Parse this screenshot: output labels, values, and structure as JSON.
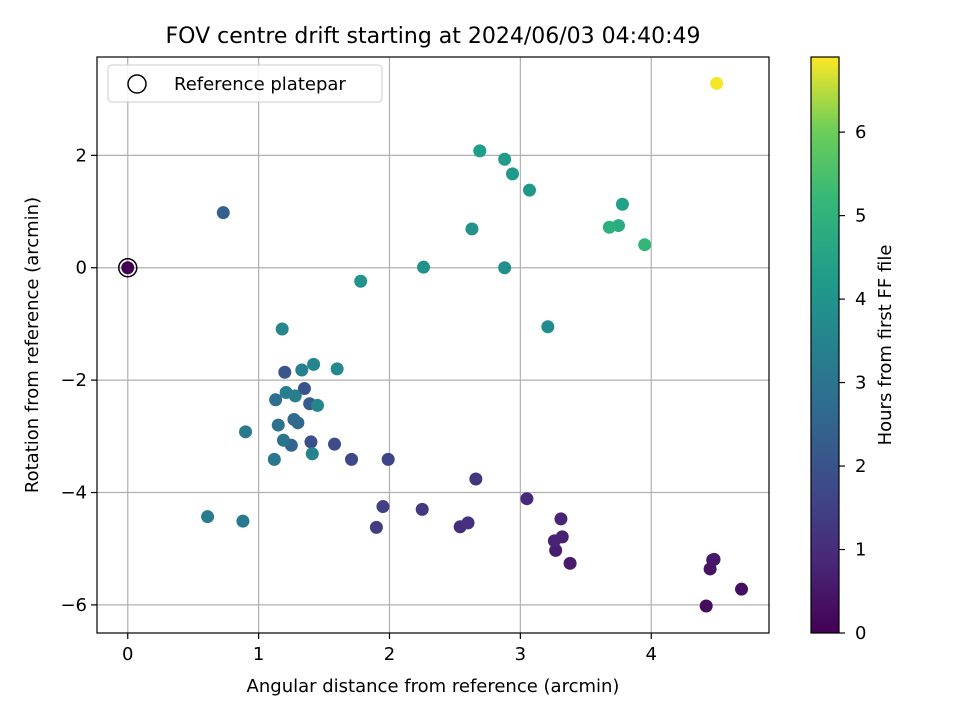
{
  "chart_data": {
    "type": "scatter",
    "title": "FOV centre drift starting at 2024/06/03 04:40:49",
    "xlabel": "Angular distance from reference (arcmin)",
    "ylabel": "Rotation from reference (arcmin)",
    "xlim": [
      -0.235,
      4.9
    ],
    "ylim": [
      -6.5,
      3.75
    ],
    "xticks": [
      0,
      1,
      2,
      3,
      4
    ],
    "yticks": [
      -6,
      -4,
      -2,
      0,
      2
    ],
    "grid": true,
    "legend": {
      "placement": "top-left",
      "entries": [
        "Reference platepar"
      ]
    },
    "reference_point": {
      "x": 0,
      "y": 0
    },
    "colorbar": {
      "label": "Hours from first FF file",
      "range": [
        0,
        6.9
      ],
      "ticks": [
        0,
        1,
        2,
        3,
        4,
        5,
        6
      ],
      "colormap": "viridis"
    },
    "points": [
      {
        "x": 0.0,
        "y": 0.0,
        "c": 0.0
      },
      {
        "x": 4.42,
        "y": -6.02,
        "c": 0.25
      },
      {
        "x": 4.69,
        "y": -5.72,
        "c": 0.3
      },
      {
        "x": 4.45,
        "y": -5.36,
        "c": 0.4
      },
      {
        "x": 4.47,
        "y": -5.2,
        "c": 0.45
      },
      {
        "x": 4.48,
        "y": -5.19,
        "c": 0.5
      },
      {
        "x": 3.38,
        "y": -5.26,
        "c": 0.6
      },
      {
        "x": 3.27,
        "y": -5.03,
        "c": 0.65
      },
      {
        "x": 3.32,
        "y": -4.79,
        "c": 0.7
      },
      {
        "x": 3.26,
        "y": -4.86,
        "c": 0.75
      },
      {
        "x": 3.31,
        "y": -4.47,
        "c": 0.8
      },
      {
        "x": 3.05,
        "y": -4.11,
        "c": 0.9
      },
      {
        "x": 2.54,
        "y": -4.61,
        "c": 1.0
      },
      {
        "x": 2.6,
        "y": -4.54,
        "c": 1.1
      },
      {
        "x": 2.66,
        "y": -3.76,
        "c": 1.2
      },
      {
        "x": 2.25,
        "y": -4.3,
        "c": 1.3
      },
      {
        "x": 1.9,
        "y": -4.62,
        "c": 1.4
      },
      {
        "x": 1.95,
        "y": -4.25,
        "c": 1.5
      },
      {
        "x": 1.99,
        "y": -3.41,
        "c": 1.6
      },
      {
        "x": 1.71,
        "y": -3.41,
        "c": 1.7
      },
      {
        "x": 1.58,
        "y": -3.14,
        "c": 1.8
      },
      {
        "x": 1.4,
        "y": -3.1,
        "c": 1.9
      },
      {
        "x": 1.35,
        "y": -2.15,
        "c": 2.0
      },
      {
        "x": 1.2,
        "y": -1.86,
        "c": 2.1
      },
      {
        "x": 1.39,
        "y": -2.42,
        "c": 2.2
      },
      {
        "x": 0.73,
        "y": 0.98,
        "c": 2.35
      },
      {
        "x": 1.25,
        "y": -3.16,
        "c": 2.5
      },
      {
        "x": 1.3,
        "y": -2.76,
        "c": 2.6
      },
      {
        "x": 1.27,
        "y": -2.7,
        "c": 2.7
      },
      {
        "x": 1.13,
        "y": -2.35,
        "c": 2.8
      },
      {
        "x": 1.15,
        "y": -2.8,
        "c": 2.9
      },
      {
        "x": 1.19,
        "y": -3.07,
        "c": 3.0
      },
      {
        "x": 1.12,
        "y": -3.41,
        "c": 3.1
      },
      {
        "x": 0.9,
        "y": -2.92,
        "c": 3.15
      },
      {
        "x": 0.88,
        "y": -4.51,
        "c": 3.2
      },
      {
        "x": 0.61,
        "y": -4.43,
        "c": 3.25
      },
      {
        "x": 1.21,
        "y": -2.22,
        "c": 3.3
      },
      {
        "x": 1.28,
        "y": -2.28,
        "c": 3.35
      },
      {
        "x": 1.33,
        "y": -1.82,
        "c": 3.4
      },
      {
        "x": 1.41,
        "y": -3.31,
        "c": 3.45
      },
      {
        "x": 1.45,
        "y": -2.45,
        "c": 3.5
      },
      {
        "x": 1.42,
        "y": -1.72,
        "c": 3.55
      },
      {
        "x": 1.18,
        "y": -1.09,
        "c": 3.6
      },
      {
        "x": 1.6,
        "y": -1.8,
        "c": 3.65
      },
      {
        "x": 3.21,
        "y": -1.05,
        "c": 3.75
      },
      {
        "x": 2.88,
        "y": 0.0,
        "c": 3.85
      },
      {
        "x": 2.26,
        "y": 0.01,
        "c": 3.9
      },
      {
        "x": 2.63,
        "y": 0.69,
        "c": 3.95
      },
      {
        "x": 1.78,
        "y": -0.24,
        "c": 4.05
      },
      {
        "x": 3.07,
        "y": 1.38,
        "c": 4.15
      },
      {
        "x": 2.94,
        "y": 1.67,
        "c": 4.2
      },
      {
        "x": 2.88,
        "y": 1.93,
        "c": 4.25
      },
      {
        "x": 2.69,
        "y": 2.08,
        "c": 4.3
      },
      {
        "x": 3.78,
        "y": 1.13,
        "c": 4.4
      },
      {
        "x": 3.75,
        "y": 0.75,
        "c": 4.8
      },
      {
        "x": 3.68,
        "y": 0.72,
        "c": 4.9
      },
      {
        "x": 3.95,
        "y": 0.41,
        "c": 5.1
      },
      {
        "x": 4.5,
        "y": 3.28,
        "c": 6.85
      }
    ]
  }
}
